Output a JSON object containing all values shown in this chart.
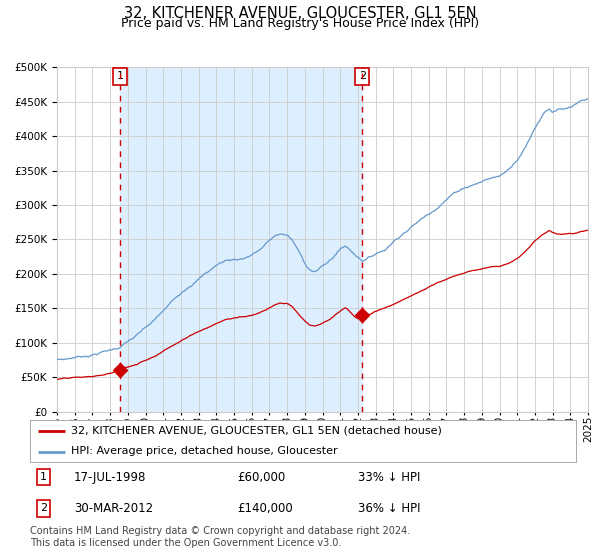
{
  "title": "32, KITCHENER AVENUE, GLOUCESTER, GL1 5EN",
  "subtitle": "Price paid vs. HM Land Registry's House Price Index (HPI)",
  "red_label": "32, KITCHENER AVENUE, GLOUCESTER, GL1 5EN (detached house)",
  "blue_label": "HPI: Average price, detached house, Gloucester",
  "footnote": "Contains HM Land Registry data © Crown copyright and database right 2024.\nThis data is licensed under the Open Government Licence v3.0.",
  "sale1_date": "17-JUL-1998",
  "sale1_price": "£60,000",
  "sale1_hpi": "33% ↓ HPI",
  "sale2_date": "30-MAR-2012",
  "sale2_price": "£140,000",
  "sale2_hpi": "36% ↓ HPI",
  "sale1_year": 1998.55,
  "sale2_year": 2012.25,
  "sale1_red_value": 60000,
  "sale2_red_value": 140000,
  "ylim_max": 500000,
  "ylim_min": 0,
  "xlim_min": 1995,
  "xlim_max": 2025,
  "shaded_xmin": 1998.55,
  "shaded_xmax": 2012.25,
  "red_color": "#cc0000",
  "blue_color": "#6699cc",
  "shade_color": "#ddeeff",
  "grid_color": "#cccccc",
  "vline_color": "#cc0000",
  "background_color": "#ffffff",
  "title_fontsize": 10.5,
  "subtitle_fontsize": 9,
  "axis_fontsize": 7.5,
  "legend_fontsize": 8,
  "footnote_fontsize": 7
}
